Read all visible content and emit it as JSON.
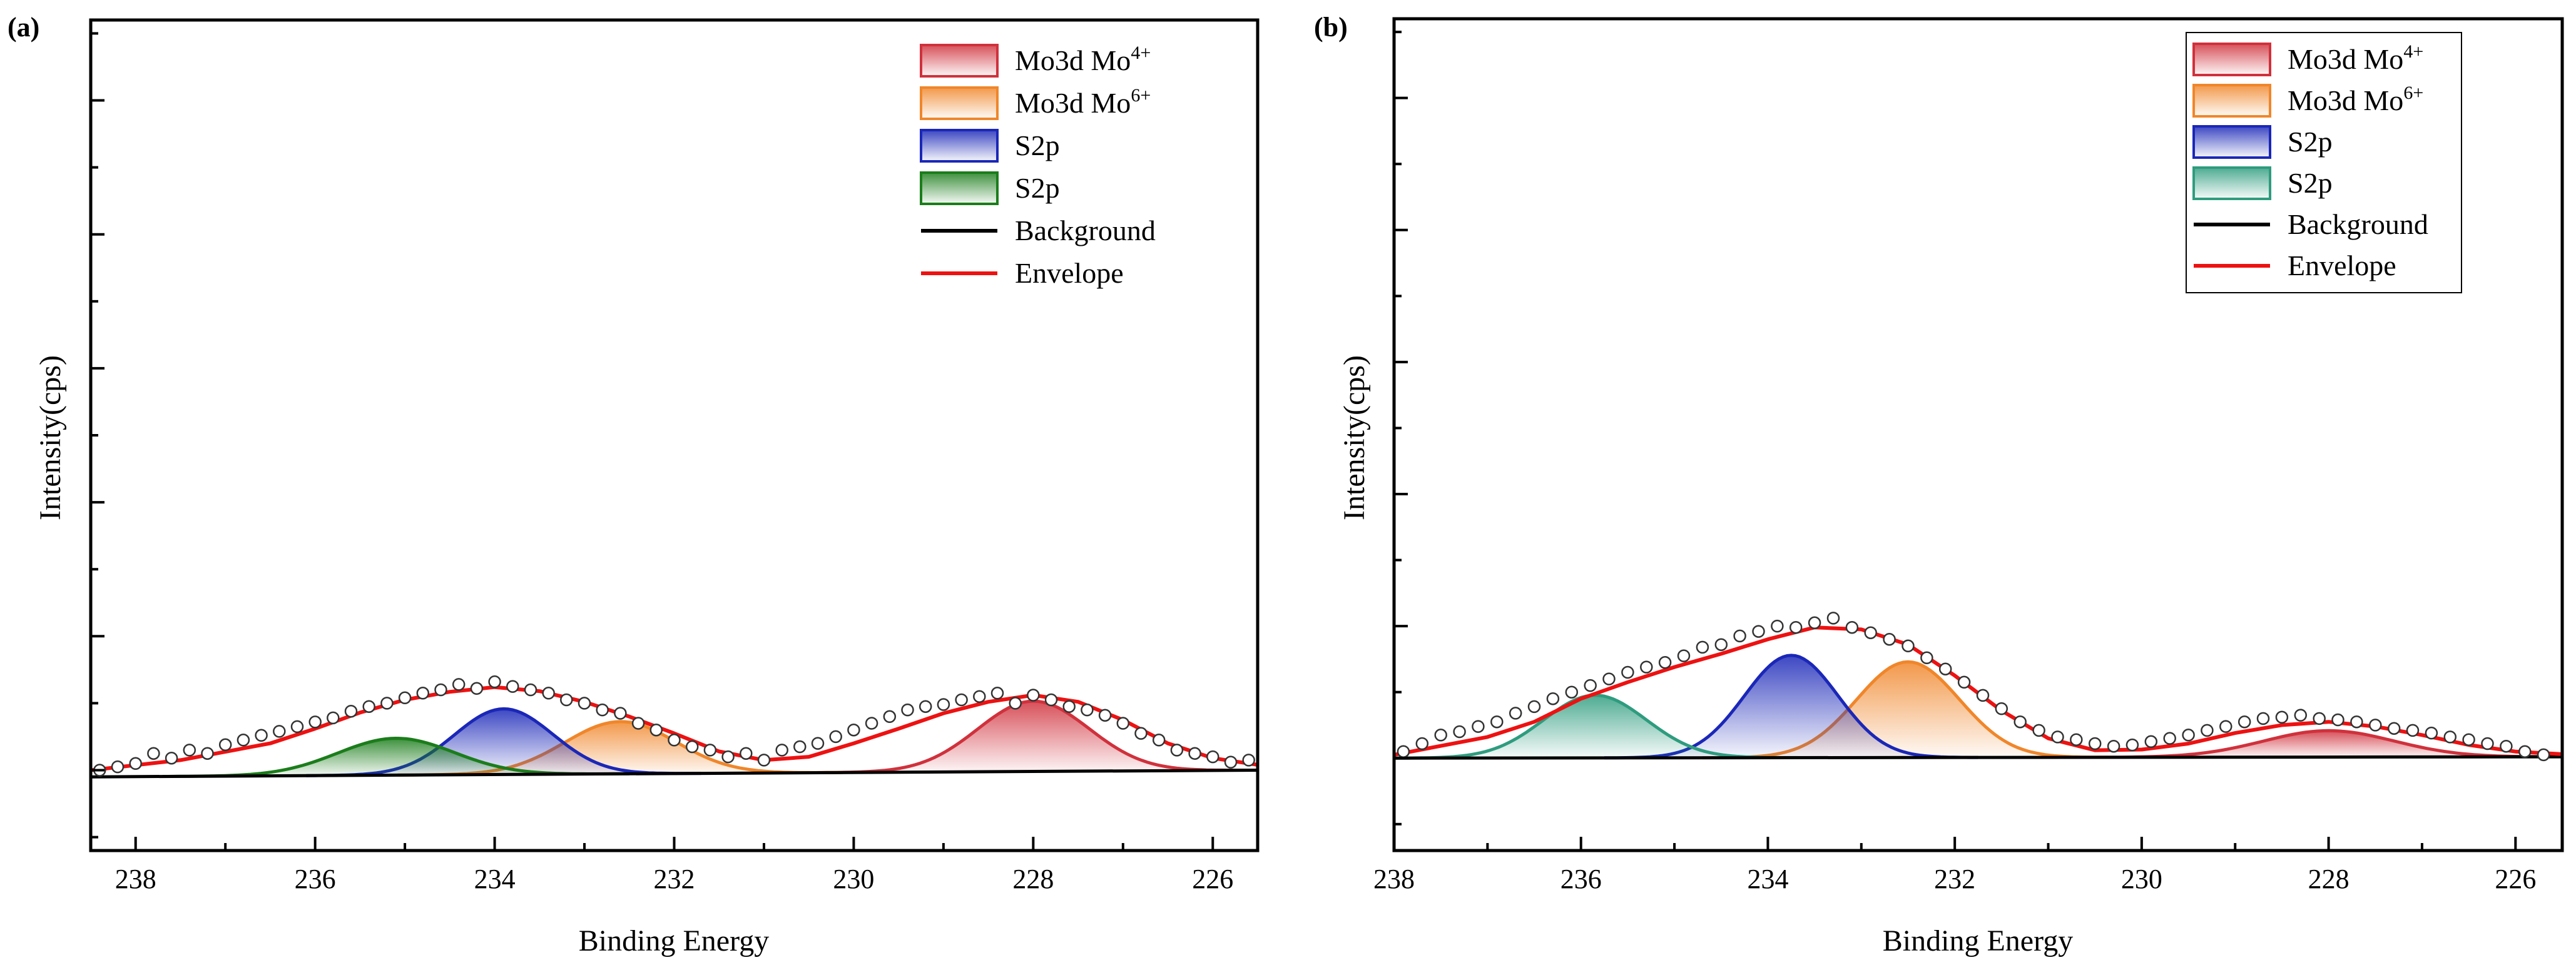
{
  "figure": {
    "colors": {
      "mo4": "#d0313c",
      "mo6": "#f0862a",
      "s2p_blue": "#1a27b8",
      "s2p_green_a": "#1b7d1b",
      "s2p_green_b": "#2e9c7e",
      "background": "#000000",
      "envelope": "#ee1111"
    }
  },
  "chart_data": [
    {
      "panel_label": "(a)",
      "type": "line",
      "xlabel": "Binding Energy",
      "ylabel": "Intensity(cps)",
      "xlim": [
        238.5,
        225.5
      ],
      "xticks": [
        238,
        236,
        234,
        232,
        230,
        228,
        226
      ],
      "xtick_labels": [
        "238",
        "236",
        "234",
        "232",
        "230",
        "228",
        "226"
      ],
      "ylim": [
        -1.2,
        11.2
      ],
      "y_tick_labels_shown": false,
      "legend_position": "top-right",
      "legend_boxed": false,
      "legend": [
        {
          "kind": "fill",
          "color_key": "mo4",
          "text": "Mo3d  Mo",
          "sup": "4+"
        },
        {
          "kind": "fill",
          "color_key": "mo6",
          "text": "Mo3d  Mo",
          "sup": "6+"
        },
        {
          "kind": "fill",
          "color_key": "s2p_blue",
          "text": "S2p",
          "sup": ""
        },
        {
          "kind": "fill",
          "color_key": "s2p_green_a",
          "text": "S2p",
          "sup": ""
        },
        {
          "kind": "line",
          "color_key": "background",
          "text": "Background",
          "sup": ""
        },
        {
          "kind": "line",
          "color_key": "envelope",
          "text": "Envelope",
          "sup": ""
        }
      ],
      "background_line": {
        "x": [
          238.5,
          225.5
        ],
        "y": [
          -0.1,
          0.0
        ]
      },
      "peaks": [
        {
          "name": "Mo3d Mo4+",
          "color_key": "mo4",
          "center": 228.0,
          "height": 1.05,
          "sigma": 0.62
        },
        {
          "name": "Mo3d Mo6+",
          "color_key": "mo6",
          "center": 232.6,
          "height": 0.78,
          "sigma": 0.62
        },
        {
          "name": "S2p",
          "color_key": "s2p_blue",
          "center": 233.9,
          "height": 0.98,
          "sigma": 0.55
        },
        {
          "name": "S2p",
          "color_key": "s2p_green_a",
          "center": 235.1,
          "height": 0.55,
          "sigma": 0.65
        }
      ],
      "envelope": {
        "x": [
          238.5,
          237.5,
          236.5,
          236.0,
          235.5,
          235.0,
          234.5,
          234.0,
          233.5,
          233.0,
          232.5,
          232.0,
          231.5,
          231.0,
          230.5,
          230.0,
          229.5,
          229.0,
          228.5,
          228.0,
          227.5,
          227.0,
          226.5,
          226.0,
          225.5
        ],
        "y": [
          0.0,
          0.15,
          0.4,
          0.62,
          0.86,
          1.05,
          1.17,
          1.24,
          1.18,
          1.02,
          0.8,
          0.55,
          0.28,
          0.15,
          0.2,
          0.4,
          0.62,
          0.85,
          1.02,
          1.12,
          1.02,
          0.75,
          0.4,
          0.18,
          0.08
        ]
      },
      "scatter": {
        "x": [
          238.4,
          238.2,
          238.0,
          237.8,
          237.6,
          237.4,
          237.2,
          237.0,
          236.8,
          236.6,
          236.4,
          236.2,
          236.0,
          235.8,
          235.6,
          235.4,
          235.2,
          235.0,
          234.8,
          234.6,
          234.4,
          234.2,
          234.0,
          233.8,
          233.6,
          233.4,
          233.2,
          233.0,
          232.8,
          232.6,
          232.4,
          232.2,
          232.0,
          231.8,
          231.6,
          231.4,
          231.2,
          231.0,
          230.8,
          230.6,
          230.4,
          230.2,
          230.0,
          229.8,
          229.6,
          229.4,
          229.2,
          229.0,
          228.8,
          228.6,
          228.4,
          228.2,
          228.0,
          227.8,
          227.6,
          227.4,
          227.2,
          227.0,
          226.8,
          226.6,
          226.4,
          226.2,
          226.0,
          225.8,
          225.6
        ],
        "y": [
          0.0,
          0.05,
          0.1,
          0.25,
          0.18,
          0.3,
          0.25,
          0.38,
          0.45,
          0.52,
          0.58,
          0.65,
          0.72,
          0.78,
          0.88,
          0.95,
          1.0,
          1.08,
          1.15,
          1.2,
          1.28,
          1.22,
          1.32,
          1.25,
          1.2,
          1.15,
          1.05,
          1.0,
          0.9,
          0.85,
          0.7,
          0.6,
          0.45,
          0.35,
          0.3,
          0.2,
          0.25,
          0.15,
          0.3,
          0.35,
          0.4,
          0.5,
          0.6,
          0.7,
          0.8,
          0.9,
          0.95,
          0.98,
          1.05,
          1.1,
          1.15,
          1.0,
          1.12,
          1.05,
          0.95,
          0.9,
          0.82,
          0.7,
          0.55,
          0.45,
          0.3,
          0.25,
          0.2,
          0.12,
          0.15
        ]
      }
    },
    {
      "panel_label": "(b)",
      "type": "line",
      "xlabel": "Binding Energy",
      "ylabel": "Intensity(cps)",
      "xlim": [
        238.0,
        225.5
      ],
      "xticks": [
        238,
        236,
        234,
        232,
        230,
        228,
        226
      ],
      "xtick_labels": [
        "238",
        "236",
        "234",
        "232",
        "230",
        "228",
        "226"
      ],
      "ylim": [
        -1.4,
        11.2
      ],
      "y_tick_labels_shown": false,
      "legend_position": "top-right",
      "legend_boxed": true,
      "legend": [
        {
          "kind": "fill",
          "color_key": "mo4",
          "text": "Mo3d  Mo",
          "sup": "4+"
        },
        {
          "kind": "fill",
          "color_key": "mo6",
          "text": "Mo3d  Mo",
          "sup": "6+"
        },
        {
          "kind": "fill",
          "color_key": "s2p_blue",
          "text": "S2p",
          "sup": ""
        },
        {
          "kind": "fill",
          "color_key": "s2p_green_b",
          "text": "S2p",
          "sup": ""
        },
        {
          "kind": "line",
          "color_key": "background",
          "text": "Background",
          "sup": ""
        },
        {
          "kind": "line",
          "color_key": "envelope",
          "text": "Envelope",
          "sup": ""
        }
      ],
      "background_line": {
        "x": [
          238.0,
          225.5
        ],
        "y": [
          0.0,
          0.02
        ]
      },
      "peaks": [
        {
          "name": "Mo3d Mo4+",
          "color_key": "mo4",
          "center": 228.0,
          "height": 0.4,
          "sigma": 0.7
        },
        {
          "name": "Mo3d Mo6+",
          "color_key": "mo6",
          "center": 232.5,
          "height": 1.45,
          "sigma": 0.55
        },
        {
          "name": "S2p",
          "color_key": "s2p_blue",
          "center": 233.75,
          "height": 1.55,
          "sigma": 0.5
        },
        {
          "name": "S2p",
          "color_key": "s2p_green_b",
          "center": 235.85,
          "height": 0.95,
          "sigma": 0.55
        }
      ],
      "envelope": {
        "x": [
          238.0,
          237.0,
          236.5,
          236.0,
          235.5,
          235.0,
          234.5,
          234.0,
          233.5,
          233.0,
          232.5,
          232.0,
          231.5,
          231.0,
          230.5,
          230.0,
          229.5,
          229.0,
          228.5,
          228.0,
          227.5,
          227.0,
          226.5,
          226.0,
          225.5
        ],
        "y": [
          0.05,
          0.32,
          0.55,
          0.9,
          1.15,
          1.38,
          1.58,
          1.8,
          1.98,
          1.95,
          1.72,
          1.25,
          0.72,
          0.3,
          0.12,
          0.13,
          0.22,
          0.38,
          0.5,
          0.55,
          0.48,
          0.35,
          0.2,
          0.1,
          0.06
        ]
      },
      "scatter": {
        "x": [
          237.9,
          237.7,
          237.5,
          237.3,
          237.1,
          236.9,
          236.7,
          236.5,
          236.3,
          236.1,
          235.9,
          235.7,
          235.5,
          235.3,
          235.1,
          234.9,
          234.7,
          234.5,
          234.3,
          234.1,
          233.9,
          233.7,
          233.5,
          233.3,
          233.1,
          232.9,
          232.7,
          232.5,
          232.3,
          232.1,
          231.9,
          231.7,
          231.5,
          231.3,
          231.1,
          230.9,
          230.7,
          230.5,
          230.3,
          230.1,
          229.9,
          229.7,
          229.5,
          229.3,
          229.1,
          228.9,
          228.7,
          228.5,
          228.3,
          228.1,
          227.9,
          227.7,
          227.5,
          227.3,
          227.1,
          226.9,
          226.7,
          226.5,
          226.3,
          226.1,
          225.9,
          225.7
        ],
        "y": [
          0.1,
          0.22,
          0.35,
          0.4,
          0.48,
          0.55,
          0.68,
          0.78,
          0.9,
          1.0,
          1.1,
          1.2,
          1.3,
          1.38,
          1.45,
          1.55,
          1.68,
          1.72,
          1.85,
          1.92,
          2.0,
          1.98,
          2.05,
          2.12,
          1.98,
          1.9,
          1.8,
          1.7,
          1.52,
          1.35,
          1.15,
          0.95,
          0.75,
          0.55,
          0.42,
          0.32,
          0.28,
          0.22,
          0.18,
          0.2,
          0.25,
          0.3,
          0.35,
          0.42,
          0.48,
          0.55,
          0.6,
          0.62,
          0.65,
          0.6,
          0.58,
          0.55,
          0.5,
          0.45,
          0.42,
          0.38,
          0.32,
          0.28,
          0.22,
          0.18,
          0.1,
          0.05
        ]
      }
    }
  ]
}
